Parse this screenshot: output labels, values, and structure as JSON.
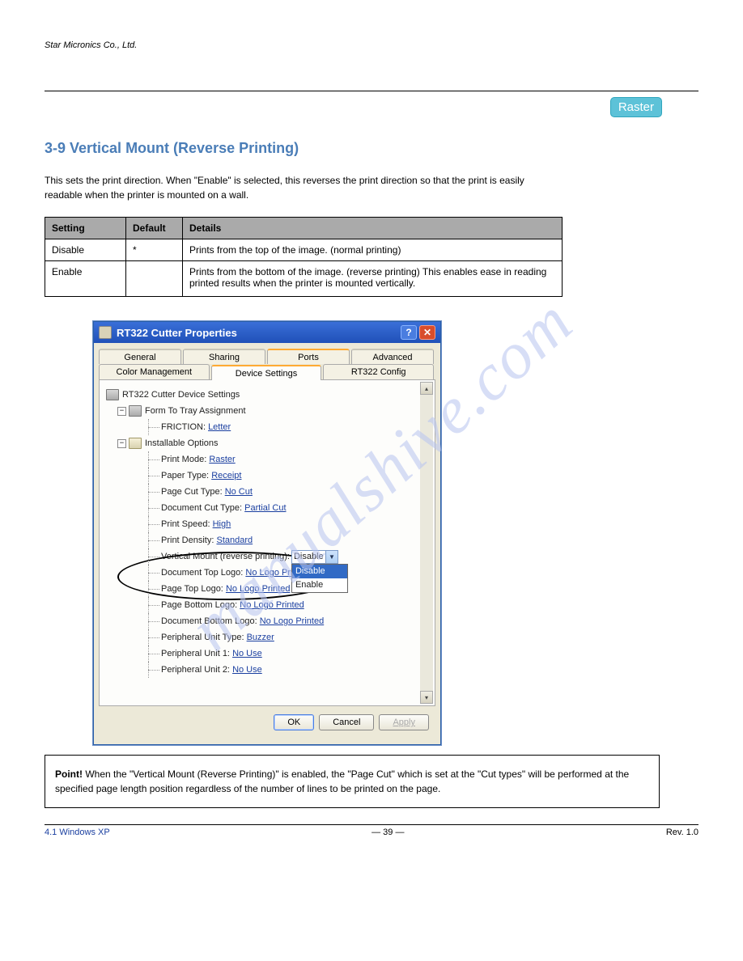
{
  "page": {
    "header_left_italic": "Star Micronics Co., Ltd.",
    "section_title": "4.1 Windows XP",
    "section_title_color": "#4a7db7",
    "raster_label": "Raster",
    "footer_left": "— 39 —",
    "footer_right": "Rev. 1.0",
    "watermark": "manualshive.com"
  },
  "heading": "3-9  Vertical Mount (Reverse Printing)",
  "description": "This sets the print direction. When \"Enable\" is selected, this reverses the print direction so that the print is easily readable when the printer is mounted on a wall.",
  "table": {
    "headers": [
      "Setting",
      "Default",
      "Details"
    ],
    "rows": [
      {
        "setting": "Disable",
        "default": "*",
        "details": "Prints from the top of the image. (normal printing)"
      },
      {
        "setting": "Enable",
        "default": "",
        "details": "Prints from the bottom of the image. (reverse printing) This enables ease in reading printed results when the printer is mounted vertically."
      }
    ]
  },
  "window": {
    "title": "RT322 Cutter Properties",
    "tabs_row1": [
      {
        "label": "General"
      },
      {
        "label": "Sharing"
      },
      {
        "label": "Ports"
      },
      {
        "label": "Advanced"
      }
    ],
    "tabs_row2": [
      {
        "label": "Color Management"
      },
      {
        "label": "Device Settings",
        "selected": true
      },
      {
        "label": "RT322 Config"
      }
    ],
    "tree": {
      "root": "RT322 Cutter Device Settings",
      "group_a": "Form To Tray Assignment",
      "friction_label": "FRICTION:",
      "friction_value": "Letter",
      "group_b": "Installable Options",
      "options": [
        {
          "label": "Print Mode:",
          "value": "Raster"
        },
        {
          "label": "Paper Type:",
          "value": "Receipt"
        },
        {
          "label": "Page Cut Type:",
          "value": "No Cut"
        },
        {
          "label": "Document Cut Type:",
          "value": "Partial Cut"
        },
        {
          "label": "Print Speed:",
          "value": "High"
        },
        {
          "label": "Print Density:",
          "value": "Standard"
        }
      ],
      "vertical_mount_label": "Vertical Mount (reverse printing):",
      "dropdown_value": "Disable",
      "dropdown_items": [
        "Disable",
        "Enable"
      ],
      "doc_top_logo_label": "Document Top Logo:",
      "doc_top_logo_value": "No Logo Printe",
      "page_top_logo_label": "Page Top Logo:",
      "page_top_logo_value": "No Logo Printed",
      "more": [
        {
          "label": "Page Bottom Logo:",
          "value": "No Logo Printed"
        },
        {
          "label": "Document Bottom Logo:",
          "value": "No Logo Printed"
        },
        {
          "label": "Peripheral Unit Type:",
          "value": "Buzzer"
        },
        {
          "label": "Peripheral Unit 1:",
          "value": "No Use"
        },
        {
          "label": "Peripheral Unit 2:",
          "value": "No Use"
        }
      ]
    },
    "buttons": {
      "ok": "OK",
      "cancel": "Cancel",
      "apply": "Apply"
    }
  },
  "note": {
    "label": "Point!",
    "text": " When the \"Vertical Mount (Reverse Printing)\" is enabled, the \"Page Cut\" which is set at the \"Cut types\" will be performed at the specified page length position regardless of the number of lines to be printed on the page."
  }
}
